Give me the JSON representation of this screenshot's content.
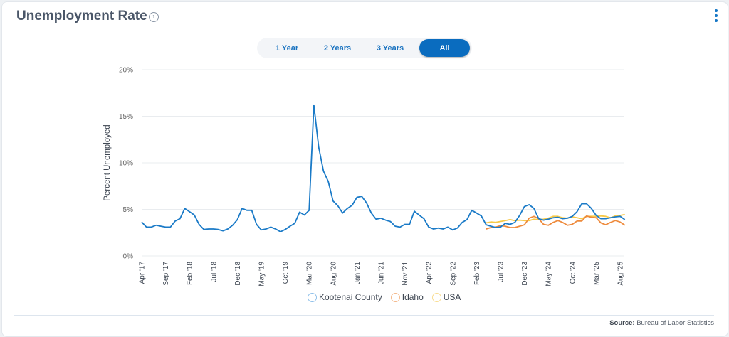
{
  "header": {
    "title": "Unemployment Rate",
    "info_icon": "info-circle-icon",
    "menu_icon": "kebab-vertical-icon"
  },
  "range_buttons": [
    {
      "label": "1 Year",
      "active": false
    },
    {
      "label": "2 Years",
      "active": false
    },
    {
      "label": "3 Years",
      "active": false
    },
    {
      "label": "All",
      "active": true
    }
  ],
  "source": {
    "label": "Source:",
    "value": "Bureau of Labor Statistics"
  },
  "chart_data": {
    "type": "line",
    "title": "",
    "xlabel": "",
    "ylabel": "Percent Unemployed",
    "ylim": [
      0,
      20
    ],
    "yticks": [
      "0%",
      "5%",
      "10%",
      "15%",
      "20%"
    ],
    "ytick_values": [
      0,
      5,
      10,
      15,
      20
    ],
    "grid": true,
    "legend": "bottom",
    "x_start": "2017-04",
    "x_end": "2025-09",
    "xticks": [
      "Apr '17",
      "Sep '17",
      "Feb '18",
      "Jul '18",
      "Dec '18",
      "May '19",
      "Oct '19",
      "Mar '20",
      "Aug '20",
      "Jan '21",
      "Jun '21",
      "Nov '21",
      "Apr '22",
      "Sep '22",
      "Feb '23",
      "Jul '23",
      "Dec '23",
      "May '24",
      "Oct '24",
      "Mar '25",
      "Aug '25"
    ],
    "series": [
      {
        "name": "Kootenai County",
        "color": "#1a7ac7",
        "start": "2017-04",
        "values": [
          3.65,
          3.1,
          3.1,
          3.3,
          3.2,
          3.1,
          3.1,
          3.75,
          4.0,
          5.1,
          4.75,
          4.4,
          3.4,
          2.85,
          2.9,
          2.9,
          2.85,
          2.7,
          2.9,
          3.3,
          3.9,
          5.1,
          4.9,
          4.9,
          3.4,
          2.8,
          2.9,
          3.1,
          2.9,
          2.6,
          2.85,
          3.2,
          3.5,
          4.7,
          4.4,
          4.9,
          16.2,
          11.7,
          9.1,
          8.0,
          5.9,
          5.4,
          4.6,
          5.1,
          5.45,
          6.3,
          6.4,
          5.7,
          4.6,
          3.95,
          4.05,
          3.85,
          3.7,
          3.2,
          3.1,
          3.4,
          3.4,
          4.8,
          4.4,
          4.0,
          3.1,
          2.9,
          3.0,
          2.9,
          3.1,
          2.8,
          3.0,
          3.6,
          3.9,
          4.9,
          4.6,
          4.3,
          3.35,
          3.2,
          3.05,
          3.1,
          3.5,
          3.4,
          3.6,
          4.35,
          5.3,
          5.5,
          5.1,
          4.0,
          3.85,
          3.95,
          4.1,
          4.15,
          4.0,
          4.05,
          4.25,
          4.75,
          5.6,
          5.6,
          5.1,
          4.35,
          4.0,
          4.0,
          4.1,
          4.2,
          4.25,
          3.9
        ]
      },
      {
        "name": "Idaho",
        "color": "#ee8a3c",
        "start": "2023-04",
        "values": [
          2.9,
          3.05,
          3.1,
          3.25,
          3.2,
          3.05,
          3.05,
          3.2,
          3.35,
          4.05,
          4.25,
          4.0,
          3.4,
          3.3,
          3.6,
          3.8,
          3.6,
          3.3,
          3.4,
          3.75,
          3.75,
          4.3,
          4.15,
          4.1,
          3.55,
          3.35,
          3.6,
          3.8,
          3.65,
          3.3
        ]
      },
      {
        "name": "USA",
        "color": "#f7c948",
        "start": "2023-04",
        "values": [
          3.55,
          3.65,
          3.6,
          3.7,
          3.8,
          3.9,
          3.8,
          3.85,
          3.8,
          3.8,
          3.95,
          3.9,
          3.95,
          4.05,
          4.25,
          4.25,
          4.1,
          4.05,
          4.2,
          4.1,
          4.0,
          4.25,
          4.25,
          4.25,
          4.3,
          4.25,
          4.1,
          4.3,
          4.35,
          4.45
        ]
      }
    ]
  }
}
